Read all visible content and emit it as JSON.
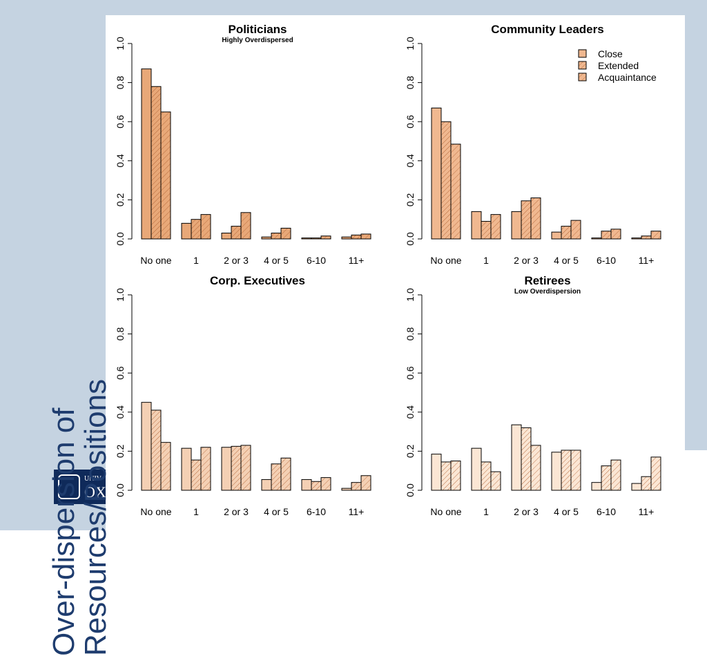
{
  "slide": {
    "title_line1": "Over-dispersion of",
    "title_line2": "Resources/Positions",
    "logo_text_top": "UNIV",
    "logo_text_main": "OX"
  },
  "colors": {
    "background": "#c5d3e1",
    "title": "#1e3c6e"
  },
  "chart_data": [
    {
      "type": "bar",
      "title": "Politicians",
      "subtitle": "Highly Overdispersed",
      "categories": [
        "No one",
        "1",
        "2 or 3",
        "4 or 5",
        "6-10",
        "11+"
      ],
      "ylim": [
        0,
        1.0
      ],
      "yticks": [
        "0.0",
        "0.2",
        "0.4",
        "0.6",
        "0.8",
        "1.0"
      ],
      "fill": "#e8a878",
      "series": [
        {
          "name": "Close",
          "values": [
            0.87,
            0.08,
            0.03,
            0.01,
            0.005,
            0.01
          ]
        },
        {
          "name": "Extended",
          "values": [
            0.78,
            0.1,
            0.065,
            0.03,
            0.005,
            0.02
          ]
        },
        {
          "name": "Acquaintance",
          "values": [
            0.65,
            0.125,
            0.135,
            0.055,
            0.015,
            0.025
          ]
        }
      ]
    },
    {
      "type": "bar",
      "title": "Community Leaders",
      "subtitle": "",
      "categories": [
        "No one",
        "1",
        "2 or 3",
        "4 or 5",
        "6-10",
        "11+"
      ],
      "ylim": [
        0,
        1.0
      ],
      "yticks": [
        "0.0",
        "0.2",
        "0.4",
        "0.6",
        "0.8",
        "1.0"
      ],
      "fill": "#f0b890",
      "legend_position": "top-right",
      "series": [
        {
          "name": "Close",
          "values": [
            0.67,
            0.14,
            0.14,
            0.035,
            0.005,
            0.005
          ]
        },
        {
          "name": "Extended",
          "values": [
            0.6,
            0.09,
            0.195,
            0.065,
            0.04,
            0.015
          ]
        },
        {
          "name": "Acquaintance",
          "values": [
            0.485,
            0.125,
            0.21,
            0.095,
            0.05,
            0.04
          ]
        }
      ]
    },
    {
      "type": "bar",
      "title": "Corp. Executives",
      "subtitle": "",
      "categories": [
        "No one",
        "1",
        "2 or 3",
        "4 or 5",
        "6-10",
        "11+"
      ],
      "ylim": [
        0,
        1.0
      ],
      "yticks": [
        "0.0",
        "0.2",
        "0.4",
        "0.6",
        "0.8",
        "1.0"
      ],
      "fill": "#f4d0b4",
      "series": [
        {
          "name": "Close",
          "values": [
            0.45,
            0.215,
            0.22,
            0.055,
            0.055,
            0.01
          ]
        },
        {
          "name": "Extended",
          "values": [
            0.41,
            0.155,
            0.225,
            0.135,
            0.045,
            0.04
          ]
        },
        {
          "name": "Acquaintance",
          "values": [
            0.245,
            0.22,
            0.23,
            0.165,
            0.065,
            0.075
          ]
        }
      ]
    },
    {
      "type": "bar",
      "title": "Retirees",
      "subtitle": "Low Overdispersion",
      "categories": [
        "No one",
        "1",
        "2 or 3",
        "4 or 5",
        "6-10",
        "11+"
      ],
      "ylim": [
        0,
        1.0
      ],
      "yticks": [
        "0.0",
        "0.2",
        "0.4",
        "0.6",
        "0.8",
        "1.0"
      ],
      "fill": "#fbe6d4",
      "series": [
        {
          "name": "Close",
          "values": [
            0.185,
            0.215,
            0.335,
            0.195,
            0.04,
            0.035
          ]
        },
        {
          "name": "Extended",
          "values": [
            0.145,
            0.145,
            0.32,
            0.205,
            0.125,
            0.07
          ]
        },
        {
          "name": "Acquaintance",
          "values": [
            0.15,
            0.095,
            0.23,
            0.205,
            0.155,
            0.17
          ]
        }
      ]
    }
  ]
}
